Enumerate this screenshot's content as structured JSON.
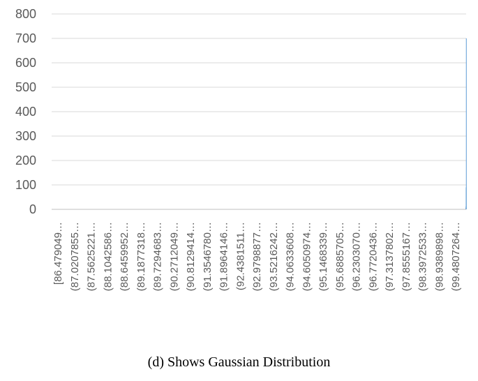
{
  "caption": "(d) Shows Gaussian Distribution",
  "chart_data": {
    "type": "bar",
    "title": "",
    "xlabel": "",
    "ylabel": "",
    "ylim": [
      0,
      800
    ],
    "yticks": [
      0,
      100,
      200,
      300,
      400,
      500,
      600,
      700,
      800
    ],
    "grid": true,
    "legend": "none",
    "bar_color": "#5b9bd5",
    "categories": [
      "[86.479049…",
      "(87.0207855…",
      "(87.5625221…",
      "(88.1042586…",
      "(88.6459952…",
      "(89.1877318…",
      "(89.7294683…",
      "(90.2712049…",
      "(90.8129414…",
      "(91.3546780…",
      "(91.8964146…",
      "(92.4381511…",
      "(92.9798877…",
      "(93.5216242…",
      "(94.0633608…",
      "(94.6050974…",
      "(95.1468339…",
      "(95.6885705…",
      "(96.2303070…",
      "(96.7720436…",
      "(97.3137802…",
      "(97.8555167…",
      "(98.3972533…",
      "(98.9389898…",
      "(99.4807264…"
    ],
    "category_start": 86.479049,
    "category_step": 0.0054173,
    "num_bins": 2500,
    "label_every": 100,
    "nonzero_bins": [
      {
        "bin": 2495,
        "value": 2
      },
      {
        "bin": 2496,
        "value": 5
      },
      {
        "bin": 2497,
        "value": 12
      },
      {
        "bin": 2498,
        "value": 90
      },
      {
        "bin": 2499,
        "value": 700
      }
    ]
  }
}
